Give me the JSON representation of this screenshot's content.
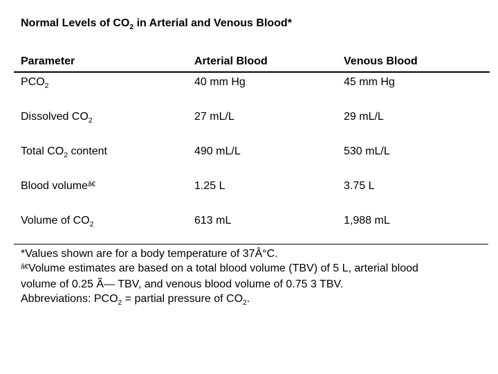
{
  "page": {
    "background_color": "#ffffff",
    "text_color": "#000000"
  },
  "title": {
    "segments": [
      {
        "t": "text",
        "v": "Normal Levels of CO"
      },
      {
        "t": "sub",
        "v": "2"
      },
      {
        "t": "text",
        "v": " in Arterial and Venous Blood*"
      }
    ]
  },
  "table": {
    "headers": [
      "Parameter",
      "Arterial Blood",
      "Venous Blood"
    ],
    "rows": [
      {
        "parameter": [
          {
            "t": "text",
            "v": "PCO"
          },
          {
            "t": "sub",
            "v": "2"
          }
        ],
        "arterial": "40 mm Hg",
        "venous": "45 mm Hg"
      },
      {
        "parameter": [
          {
            "t": "text",
            "v": "Dissolved CO"
          },
          {
            "t": "sub",
            "v": "2"
          }
        ],
        "arterial": "27 mL/L",
        "venous": "29 mL/L"
      },
      {
        "parameter": [
          {
            "t": "text",
            "v": "Total CO"
          },
          {
            "t": "sub",
            "v": "2"
          },
          {
            "t": "text",
            "v": " content"
          }
        ],
        "arterial": "490 mL/L",
        "venous": "530 mL/L"
      },
      {
        "parameter": [
          {
            "t": "text",
            "v": "Blood volume"
          },
          {
            "t": "sup",
            "v": "â€"
          }
        ],
        "arterial": "1.25 L",
        "venous": "3.75 L"
      },
      {
        "parameter": [
          {
            "t": "text",
            "v": "Volume of CO"
          },
          {
            "t": "sub",
            "v": "2"
          }
        ],
        "arterial": "613 mL",
        "venous": "1,988 mL"
      }
    ]
  },
  "footnotes": [
    [
      {
        "t": "text",
        "v": "*Values shown are for a body temperature of 37Â°C."
      }
    ],
    [
      {
        "t": "sup",
        "v": "â€"
      },
      {
        "t": "text",
        "v": "Volume estimates are based on a total blood volume (TBV) of 5 L, arterial blood"
      },
      {
        "t": "br"
      },
      {
        "t": "text",
        "v": "volume of 0.25 Ã— TBV, and venous blood volume of 0.75 3 TBV."
      }
    ],
    [
      {
        "t": "text",
        "v": "Abbreviations: PCO"
      },
      {
        "t": "sub",
        "v": "2"
      },
      {
        "t": "text",
        "v": " = partial pressure of CO"
      },
      {
        "t": "sub",
        "v": "2"
      },
      {
        "t": "text",
        "v": "."
      }
    ]
  ]
}
